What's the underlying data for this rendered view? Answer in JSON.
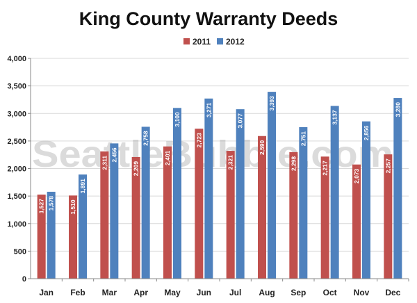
{
  "watermark": "SeattleBubble.com",
  "chart_data": {
    "type": "bar",
    "title": "King County Warranty Deeds",
    "xlabel": "",
    "ylabel": "",
    "ylim": [
      0,
      4000
    ],
    "yticks": [
      0,
      500,
      1000,
      1500,
      2000,
      2500,
      3000,
      3500,
      4000
    ],
    "ytick_labels": [
      "0",
      "500",
      "1,000",
      "1,500",
      "2,000",
      "2,500",
      "3,000",
      "3,500",
      "4,000"
    ],
    "grid": "horizontal",
    "legend_position": "top-center",
    "categories": [
      "Jan",
      "Feb",
      "Mar",
      "Apr",
      "May",
      "Jun",
      "Jul",
      "Aug",
      "Sep",
      "Oct",
      "Nov",
      "Dec"
    ],
    "series": [
      {
        "name": "2011",
        "color": "#c0504d",
        "values": [
          1527,
          1510,
          2311,
          2209,
          2401,
          2723,
          2321,
          2590,
          2298,
          2217,
          2073,
          2257
        ],
        "labels": [
          "1,527",
          "1,510",
          "2,311",
          "2,209",
          "2,401",
          "2,723",
          "2,321",
          "2,590",
          "2,298",
          "2,217",
          "2,073",
          "2,257"
        ]
      },
      {
        "name": "2012",
        "color": "#4f81bd",
        "values": [
          1578,
          1891,
          2456,
          2758,
          3100,
          3271,
          3077,
          3393,
          2751,
          3137,
          2856,
          3280
        ],
        "labels": [
          "1,578",
          "1,891",
          "2,456",
          "2,758",
          "3,100",
          "3,271",
          "3,077",
          "3,393",
          "2,751",
          "3,137",
          "2,856",
          "3,280"
        ]
      }
    ]
  }
}
